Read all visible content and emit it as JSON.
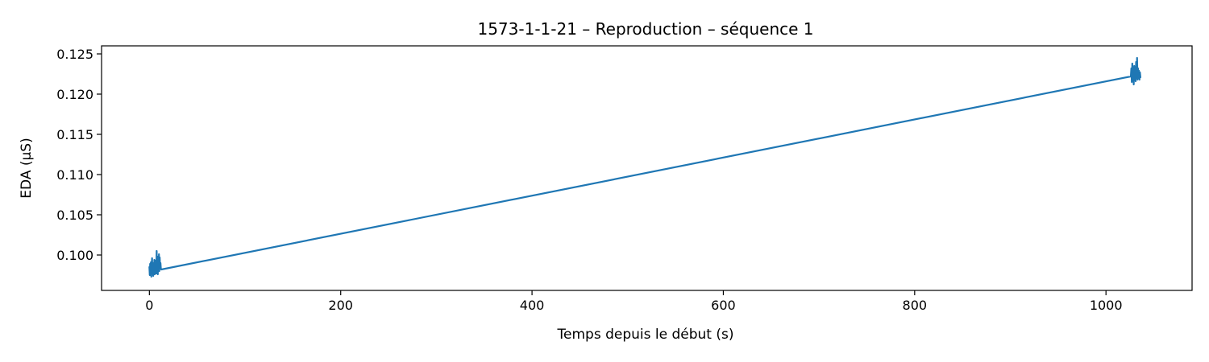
{
  "chart_data": {
    "type": "line",
    "title": "1573-1-1-21 – Reproduction – séquence 1",
    "xlabel": "Temps depuis le début (s)",
    "ylabel": "EDA (µS)",
    "xlim": [
      -50,
      1090
    ],
    "ylim": [
      0.0956,
      0.126
    ],
    "xticks": [
      0,
      200,
      400,
      600,
      800,
      1000
    ],
    "xtick_labels": [
      "0",
      "200",
      "400",
      "600",
      "800",
      "1000"
    ],
    "yticks": [
      0.1,
      0.105,
      0.11,
      0.115,
      0.12,
      0.125
    ],
    "ytick_labels": [
      "0.100",
      "0.105",
      "0.110",
      "0.115",
      "0.120",
      "0.125"
    ],
    "grid": false,
    "legend": "none",
    "series": [
      {
        "color": "#1f77b4",
        "x": [
          0.0,
          0.4,
          0.8,
          1.2,
          1.6,
          2.0,
          2.4,
          2.8,
          3.2,
          3.6,
          4.0,
          4.4,
          4.8,
          5.2,
          5.6,
          6.0,
          6.4,
          6.8,
          7.2,
          7.6,
          8.0,
          8.4,
          8.8,
          9.2,
          9.6,
          10.0,
          10.4,
          10.8,
          11.2,
          11.6,
          12.0,
          12.4,
          1026.0,
          1026.5,
          1027.0,
          1027.5,
          1028.0,
          1028.5,
          1029.0,
          1029.5,
          1030.0,
          1030.5,
          1031.0,
          1031.5,
          1032.0,
          1032.5,
          1033.0,
          1033.5,
          1034.0,
          1034.5,
          1035.0,
          1035.5,
          1036.0
        ],
        "y": [
          0.0985,
          0.0975,
          0.0989,
          0.0978,
          0.0991,
          0.0973,
          0.0987,
          0.0996,
          0.0979,
          0.099,
          0.0974,
          0.0988,
          0.0981,
          0.0994,
          0.0976,
          0.0989,
          0.0983,
          0.0993,
          0.0977,
          0.1005,
          0.098,
          0.0998,
          0.0976,
          0.0995,
          0.0983,
          0.1001,
          0.098,
          0.0997,
          0.0985,
          0.099,
          0.0983,
          0.0982,
          0.1222,
          0.1232,
          0.1215,
          0.1238,
          0.122,
          0.123,
          0.1212,
          0.1235,
          0.1222,
          0.1228,
          0.1216,
          0.124,
          0.122,
          0.1245,
          0.1218,
          0.1232,
          0.122,
          0.1229,
          0.1218,
          0.1227,
          0.1221
        ]
      }
    ]
  }
}
